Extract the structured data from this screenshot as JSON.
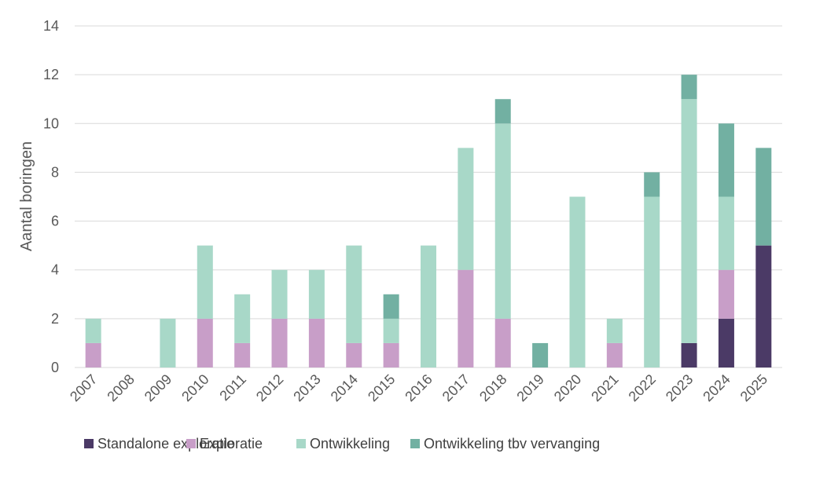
{
  "chart_data": {
    "type": "bar",
    "stacked": true,
    "ylabel": "Aantal boringen",
    "ylim": [
      0,
      14
    ],
    "yticks": [
      0,
      2,
      4,
      6,
      8,
      10,
      12,
      14
    ],
    "grid": true,
    "legend_position": "bottom",
    "categories": [
      "2007",
      "2008",
      "2009",
      "2010",
      "2011",
      "2012",
      "2013",
      "2014",
      "2015",
      "2016",
      "2017",
      "2018",
      "2019",
      "2020",
      "2021",
      "2022",
      "2023",
      "2024",
      "2025"
    ],
    "series": [
      {
        "name": "Standalone exploratie",
        "color": "#4b3a66",
        "values": [
          0,
          0,
          0,
          0,
          0,
          0,
          0,
          0,
          0,
          0,
          0,
          0,
          0,
          0,
          0,
          0,
          1,
          2,
          5
        ]
      },
      {
        "name": "Exploratie",
        "color": "#c89ec8",
        "values": [
          1,
          0,
          0,
          2,
          1,
          2,
          2,
          1,
          1,
          0,
          4,
          2,
          0,
          0,
          1,
          0,
          0,
          2,
          0
        ]
      },
      {
        "name": "Ontwikkeling",
        "color": "#a8d8c8",
        "values": [
          1,
          0,
          2,
          3,
          2,
          2,
          2,
          4,
          1,
          5,
          5,
          8,
          0,
          7,
          1,
          7,
          10,
          3,
          0
        ]
      },
      {
        "name": "Ontwikkeling tbv vervanging",
        "color": "#72b0a2",
        "values": [
          0,
          0,
          0,
          0,
          0,
          0,
          0,
          0,
          1,
          0,
          0,
          1,
          1,
          0,
          0,
          1,
          1,
          3,
          4
        ]
      }
    ]
  }
}
